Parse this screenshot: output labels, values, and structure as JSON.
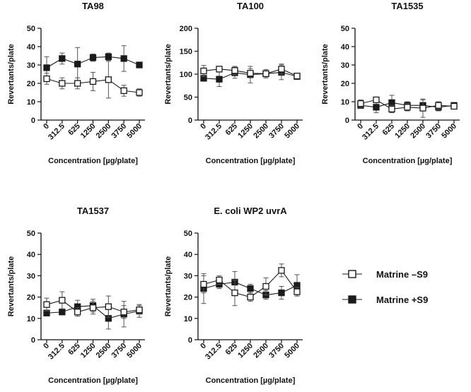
{
  "legend": {
    "entries": [
      {
        "label": "Matrine –S9",
        "marker": "open-square"
      },
      {
        "label": "Matrine +S9",
        "marker": "filled-square"
      }
    ],
    "placement": "right"
  },
  "colors": {
    "line": "#1a1a1a",
    "marker_fill_minus": "#ffffff",
    "marker_fill_plus": "#1a1a1a",
    "error_bar": "#555555"
  },
  "chart_data": [
    {
      "type": "line",
      "title": "TA98",
      "xlabel": "Concentration [µg/plate]",
      "ylabel": "Revertants/plate",
      "categories": [
        "0",
        "312.5",
        "625",
        "1250",
        "2500",
        "3750",
        "5000"
      ],
      "ylim": [
        0,
        50
      ],
      "yticks": [
        0,
        10,
        20,
        30,
        40,
        50
      ],
      "series": [
        {
          "name": "Matrine –S9",
          "values": [
            22.5,
            20.0,
            20.0,
            21.0,
            22.0,
            16.0,
            15.0
          ],
          "err": [
            3,
            3,
            3,
            5,
            10,
            3,
            2
          ]
        },
        {
          "name": "Matrine +S9",
          "values": [
            28.5,
            33.5,
            30.5,
            34.0,
            34.5,
            33.5,
            30.0
          ],
          "err": [
            6,
            3,
            9,
            2,
            2,
            7,
            1
          ]
        }
      ]
    },
    {
      "type": "line",
      "title": "TA100",
      "xlabel": "Concentration [µg/plate]",
      "ylabel": "Revertants/plate",
      "categories": [
        "0",
        "312.5",
        "625",
        "1250",
        "2500",
        "3750",
        "5000"
      ],
      "ylim": [
        0,
        200
      ],
      "yticks": [
        0,
        50,
        100,
        150,
        200
      ],
      "series": [
        {
          "name": "Matrine –S9",
          "values": [
            107,
            111,
            108,
            102,
            101,
            111,
            96
          ],
          "err": [
            12,
            6,
            9,
            10,
            9,
            11,
            4
          ]
        },
        {
          "name": "Matrine +S9",
          "values": [
            91,
            89,
            103,
            99,
            101,
            104,
            95
          ],
          "err": [
            6,
            16,
            12,
            18,
            9,
            16,
            4
          ]
        }
      ]
    },
    {
      "type": "line",
      "title": "TA1535",
      "xlabel": "Concentration [µg/plate]",
      "ylabel": "Revertants/plate",
      "categories": [
        "0",
        "312.5",
        "625",
        "1250",
        "2500",
        "3750",
        "5000"
      ],
      "ylim": [
        0,
        50
      ],
      "yticks": [
        0,
        10,
        20,
        30,
        40,
        50
      ],
      "series": [
        {
          "name": "Matrine –S9",
          "values": [
            9.0,
            11.0,
            6.0,
            7.0,
            6.5,
            8.0,
            7.5
          ],
          "err": [
            2,
            1,
            2,
            2,
            5,
            2,
            1
          ]
        },
        {
          "name": "Matrine +S9",
          "values": [
            8.0,
            7.0,
            9.5,
            8.0,
            8.0,
            7.0,
            8.0
          ],
          "err": [
            1,
            3,
            4,
            2,
            3,
            2,
            1
          ]
        }
      ]
    },
    {
      "type": "line",
      "title": "TA1537",
      "xlabel": "Concentration [µg/plate]",
      "ylabel": "Revertants/plate",
      "categories": [
        "0",
        "312.5",
        "625",
        "1250",
        "2500",
        "3750",
        "5000"
      ],
      "ylim": [
        0,
        50
      ],
      "yticks": [
        0,
        10,
        20,
        30,
        40,
        50
      ],
      "series": [
        {
          "name": "Matrine –S9",
          "values": [
            16.5,
            18.5,
            13.0,
            15.0,
            15.5,
            13.0,
            14.0
          ],
          "err": [
            3,
            4,
            2,
            3,
            5,
            3,
            2
          ]
        },
        {
          "name": "Matrine +S9",
          "values": [
            12.5,
            13.0,
            15.5,
            16.0,
            10.0,
            12.0,
            13.5
          ],
          "err": [
            1,
            1,
            3,
            3,
            5,
            6,
            3
          ]
        }
      ]
    },
    {
      "type": "line",
      "title": "E. coli WP2 uvrA",
      "xlabel": "Concentration [µg/plate]",
      "ylabel": "Revertants/plate",
      "categories": [
        "0",
        "312.5",
        "625",
        "1250",
        "2500",
        "3750",
        "5000"
      ],
      "ylim": [
        0,
        50
      ],
      "yticks": [
        0,
        10,
        20,
        30,
        40,
        50
      ],
      "series": [
        {
          "name": "Matrine –S9",
          "values": [
            26.0,
            28.0,
            22.0,
            20.0,
            25.0,
            32.5,
            22.5
          ],
          "err": [
            4,
            2,
            6,
            2,
            4,
            3,
            2
          ]
        },
        {
          "name": "Matrine +S9",
          "values": [
            24.0,
            26.0,
            27.0,
            24.0,
            21.0,
            22.0,
            25.5
          ],
          "err": [
            7,
            2,
            5,
            2,
            2,
            3,
            5
          ]
        }
      ]
    }
  ]
}
